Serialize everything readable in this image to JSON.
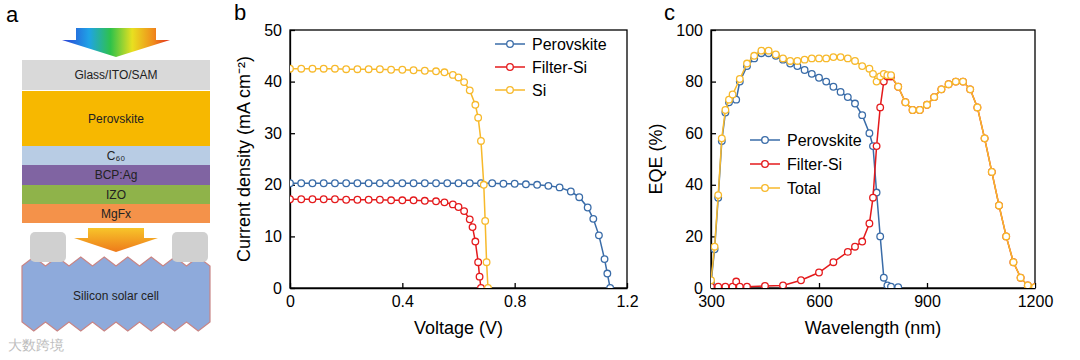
{
  "panel_labels": [
    "a",
    "b",
    "c"
  ],
  "watermark": "大数跨境",
  "diagram": {
    "layers": [
      {
        "label": "Glass/ITO/SAM"
      },
      {
        "label": "Perovskite"
      },
      {
        "label": "C₆₀"
      },
      {
        "label": "BCP:Ag"
      },
      {
        "label": "IZO"
      },
      {
        "label": "MgFx"
      }
    ],
    "cell": {
      "label": "Silicon solar cell"
    }
  },
  "chart_data": [
    {
      "type": "line",
      "x_label": "Voltage (V)",
      "y_label": "Current density (mA cm⁻²)",
      "xlim": [
        0,
        1.2
      ],
      "xticks": [
        0,
        0.4,
        0.8,
        1.2
      ],
      "ylim": [
        0,
        50
      ],
      "yticks": [
        0,
        10,
        20,
        30,
        40,
        50
      ],
      "grid": false,
      "legend": "top-right",
      "series": [
        {
          "name": "Perovskite",
          "color": "#3a6ca8",
          "marker": "circle",
          "line_style": "solid",
          "x": [
            0,
            0.04,
            0.08,
            0.12,
            0.16,
            0.2,
            0.24,
            0.28,
            0.32,
            0.36,
            0.4,
            0.44,
            0.48,
            0.52,
            0.56,
            0.6,
            0.64,
            0.68,
            0.72,
            0.76,
            0.8,
            0.84,
            0.88,
            0.92,
            0.96,
            1,
            1.03,
            1.06,
            1.08,
            1.1,
            1.12,
            1.13,
            1.14
          ],
          "values": [
            20.3,
            20.3,
            20.3,
            20.3,
            20.3,
            20.3,
            20.3,
            20.3,
            20.3,
            20.3,
            20.3,
            20.3,
            20.3,
            20.3,
            20.3,
            20.3,
            20.3,
            20.3,
            20.3,
            20.2,
            20.2,
            20.1,
            20.0,
            19.8,
            19.5,
            18.7,
            17.6,
            15.6,
            13.4,
            10.2,
            5.6,
            2.8,
            0
          ]
        },
        {
          "name": "Filter-Si",
          "color": "#e41a1c",
          "marker": "circle",
          "line_style": "solid",
          "x": [
            0,
            0.04,
            0.08,
            0.12,
            0.16,
            0.2,
            0.24,
            0.28,
            0.32,
            0.36,
            0.4,
            0.44,
            0.48,
            0.52,
            0.55,
            0.58,
            0.6,
            0.62,
            0.64,
            0.65,
            0.66,
            0.67,
            0.675,
            0.68
          ],
          "values": [
            17.2,
            17.2,
            17.2,
            17.2,
            17.2,
            17.1,
            17.1,
            17.1,
            17.1,
            17.0,
            17.0,
            17.0,
            16.9,
            16.8,
            16.6,
            16.2,
            15.7,
            14.9,
            13.3,
            11.8,
            9.0,
            5.0,
            2.2,
            0
          ]
        },
        {
          "name": "Si",
          "color": "#f7b92b",
          "marker": "circle",
          "line_style": "solid",
          "x": [
            0,
            0.04,
            0.08,
            0.12,
            0.16,
            0.2,
            0.24,
            0.28,
            0.32,
            0.36,
            0.4,
            0.44,
            0.48,
            0.52,
            0.55,
            0.58,
            0.6,
            0.62,
            0.64,
            0.66,
            0.67,
            0.68,
            0.69,
            0.695,
            0.7,
            0.705
          ],
          "values": [
            42.5,
            42.5,
            42.5,
            42.5,
            42.5,
            42.4,
            42.4,
            42.4,
            42.4,
            42.3,
            42.3,
            42.2,
            42.1,
            42.0,
            41.8,
            41.3,
            40.8,
            39.9,
            38.3,
            35.5,
            33.0,
            28.5,
            20.0,
            13.0,
            5.0,
            0
          ]
        }
      ]
    },
    {
      "type": "line",
      "x_label": "Wavelength (nm)",
      "y_label": "EQE (%)",
      "xlim": [
        300,
        1200
      ],
      "xticks": [
        300,
        600,
        900,
        1200
      ],
      "ylim": [
        0,
        100
      ],
      "yticks": [
        0,
        20,
        40,
        60,
        80,
        100
      ],
      "grid": false,
      "legend": "center-left",
      "series": [
        {
          "name": "Perovskite",
          "color": "#3a6ca8",
          "marker": "circle",
          "line_style": "solid",
          "x": [
            300,
            310,
            320,
            330,
            340,
            350,
            360,
            370,
            380,
            400,
            420,
            440,
            460,
            480,
            500,
            520,
            540,
            560,
            580,
            600,
            620,
            640,
            660,
            680,
            700,
            720,
            740,
            750,
            760,
            770,
            780,
            790,
            800,
            820
          ],
          "values": [
            2,
            15,
            35,
            57,
            68,
            72,
            74,
            73,
            80,
            86,
            89,
            91,
            91,
            90,
            88.5,
            87,
            86,
            84.5,
            83,
            81.5,
            80,
            78,
            76,
            74,
            71.5,
            67,
            60,
            55,
            37,
            20,
            4,
            1,
            0.5,
            0.3
          ]
        },
        {
          "name": "Filter-Si",
          "color": "#e41a1c",
          "marker": "circle",
          "line_style": "solid",
          "x": [
            300,
            320,
            340,
            360,
            370,
            380,
            400,
            450,
            500,
            550,
            600,
            640,
            680,
            700,
            720,
            740,
            750,
            760,
            770,
            780,
            790,
            800,
            820,
            840,
            860,
            880,
            900,
            920,
            940,
            960,
            980,
            1000,
            1020,
            1040,
            1060,
            1080,
            1100,
            1120,
            1140,
            1160,
            1180,
            1200
          ],
          "values": [
            0.5,
            0.5,
            0.5,
            0.5,
            2.5,
            0.5,
            0.5,
            0.8,
            1,
            3,
            6,
            10,
            14,
            16,
            18,
            25,
            35,
            55,
            70,
            80,
            82,
            82,
            78,
            72,
            69,
            69,
            71,
            74,
            77,
            79,
            80,
            80,
            77,
            70,
            58,
            45,
            32,
            20,
            10,
            4,
            1,
            0.3
          ]
        },
        {
          "name": "Total",
          "color": "#f7b92b",
          "marker": "circle",
          "line_style": "solid",
          "x": [
            300,
            310,
            320,
            330,
            340,
            350,
            360,
            380,
            400,
            420,
            440,
            460,
            480,
            500,
            520,
            540,
            560,
            580,
            600,
            620,
            640,
            660,
            680,
            700,
            720,
            740,
            750,
            760,
            770,
            780,
            790,
            800,
            820,
            840,
            860,
            880,
            900,
            920,
            940,
            960,
            980,
            1000,
            1020,
            1040,
            1060,
            1080,
            1100,
            1120,
            1140,
            1160,
            1180,
            1200
          ],
          "values": [
            3,
            16,
            36,
            58,
            69,
            73,
            75,
            81,
            87,
            90,
            92,
            92,
            90.5,
            89,
            88,
            88,
            88.5,
            89,
            89,
            89,
            89.5,
            89.5,
            89,
            88,
            86,
            85,
            83,
            80,
            82,
            83,
            82.5,
            82.5,
            78,
            72,
            69,
            69,
            71,
            74,
            77,
            79,
            80,
            80,
            77,
            70,
            58,
            45,
            32,
            20,
            10,
            4,
            1,
            0.3
          ]
        }
      ]
    }
  ]
}
